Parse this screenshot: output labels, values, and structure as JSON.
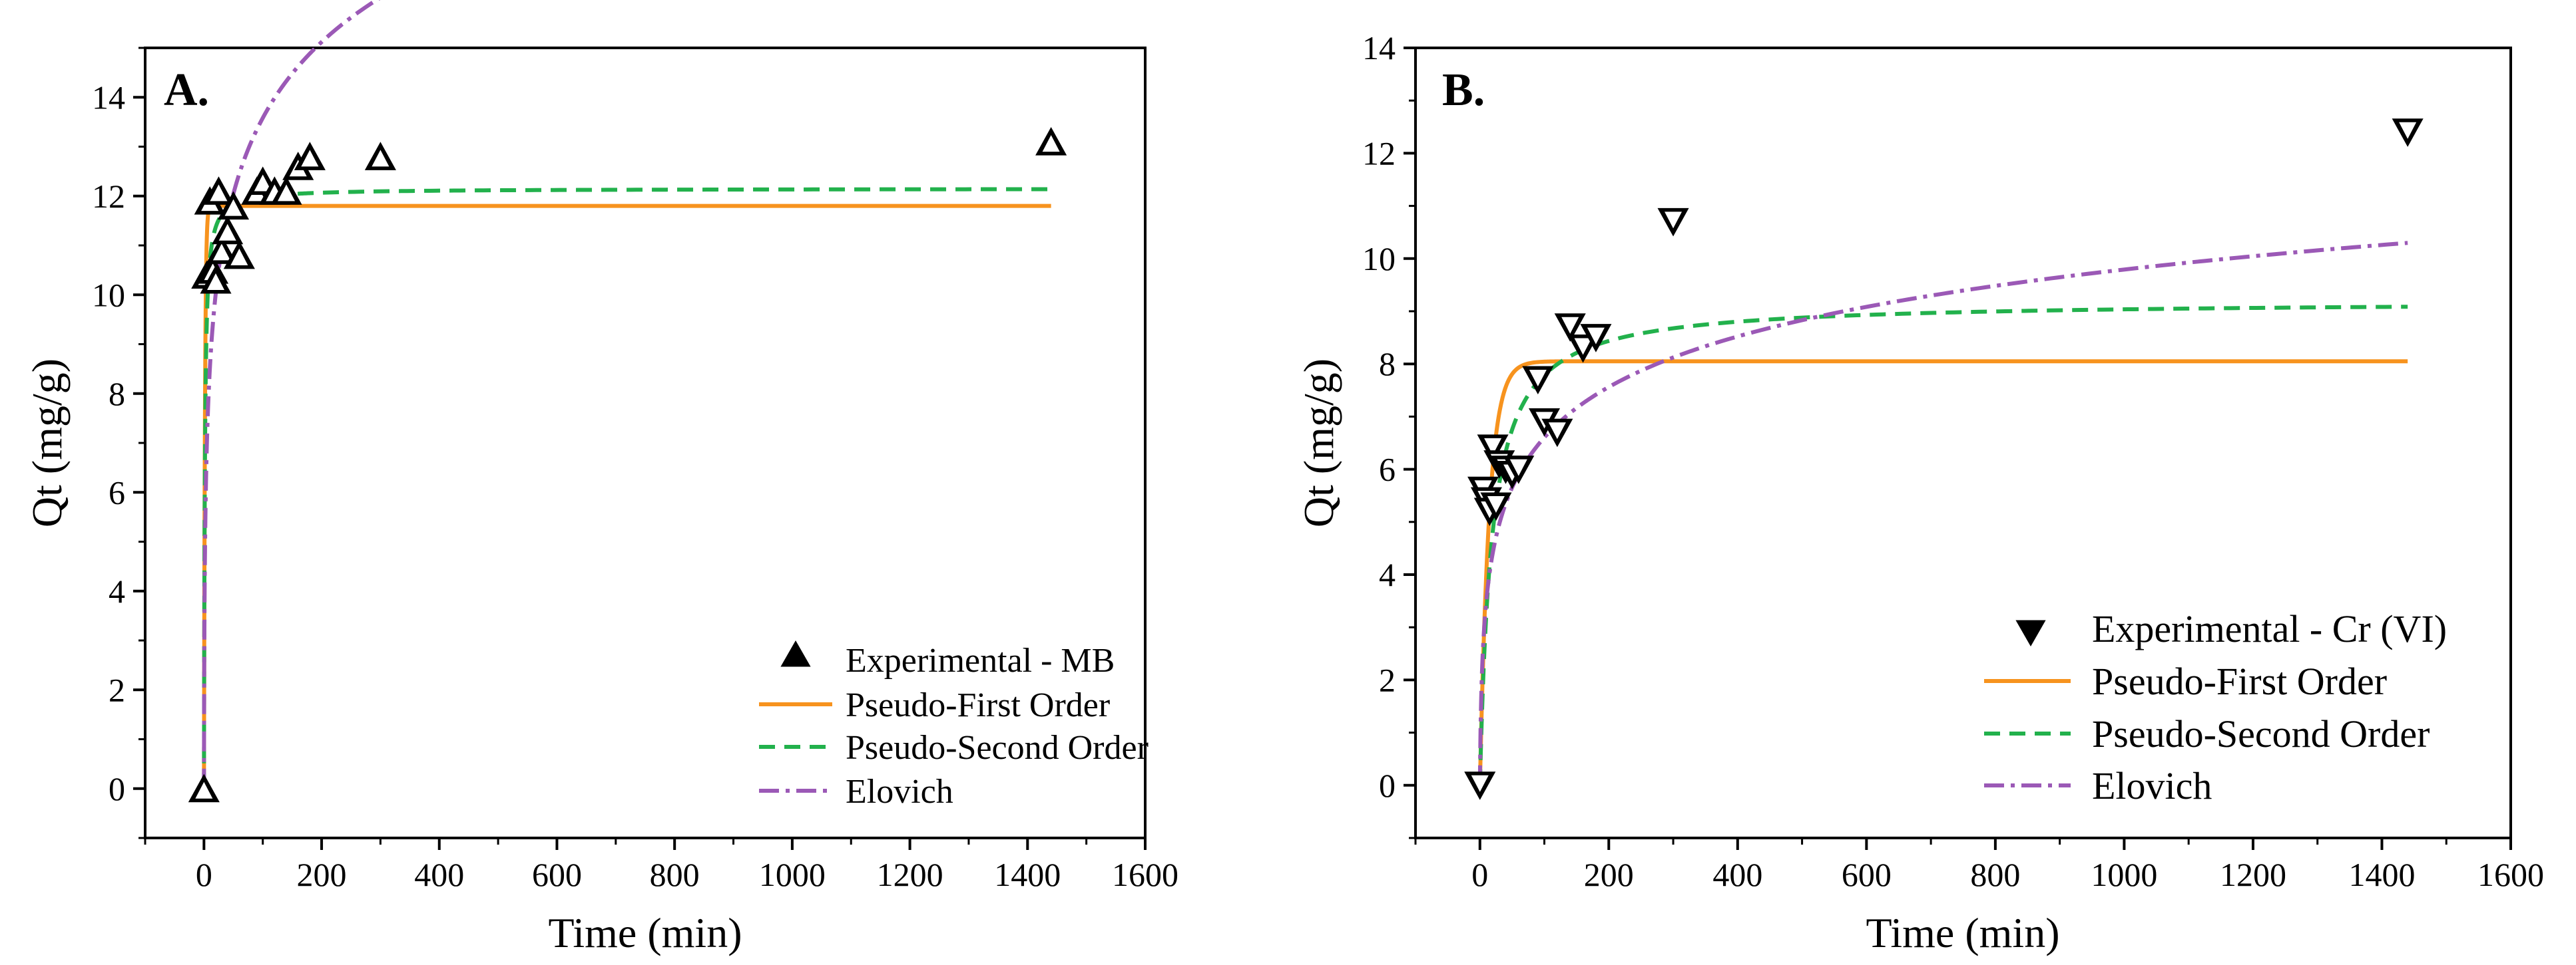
{
  "colors": {
    "axis": "#000000",
    "pfo": "#F7931E",
    "pso": "#22B14C",
    "elovich": "#9B59B6"
  },
  "chart_data": [
    {
      "type": "scatter",
      "panel_label": "A.",
      "xlabel": "Time (min)",
      "ylabel": "Qt (mg/g)",
      "xlim": [
        -100,
        1600
      ],
      "ylim": [
        -1,
        15
      ],
      "xticks": [
        0,
        200,
        400,
        600,
        800,
        1000,
        1200,
        1400,
        1600
      ],
      "yticks": [
        0,
        2,
        4,
        6,
        8,
        10,
        12,
        14
      ],
      "tick_labels_x": [
        "0",
        "200",
        "400",
        "600",
        "800",
        "1000",
        "1200",
        "1400",
        "1600"
      ],
      "tick_labels_y": [
        "0",
        "2",
        "4",
        "6",
        "8",
        "10",
        "12",
        "14"
      ],
      "legend_position": "bottom-right",
      "marker": "triangle-up",
      "legend": [
        "Experimental - MB",
        "Pseudo-First Order",
        "Pseudo-Second Order",
        "Elovich"
      ],
      "series": [
        {
          "name": "Experimental - MB",
          "style": "markers",
          "x": [
            0,
            5,
            10,
            15,
            20,
            25,
            30,
            40,
            50,
            60,
            90,
            100,
            120,
            140,
            160,
            180,
            300,
            1440
          ],
          "y": [
            0,
            10.4,
            11.9,
            10.5,
            10.3,
            12.1,
            10.9,
            11.3,
            11.8,
            10.8,
            12.1,
            12.3,
            12.1,
            12.1,
            12.6,
            12.8,
            12.8,
            13.1
          ]
        },
        {
          "name": "Pseudo-First Order",
          "style": "solid",
          "model": "pfo",
          "qe": 11.8,
          "k": 0.6
        },
        {
          "name": "Pseudo-Second Order",
          "style": "dashed",
          "model": "pso",
          "qe": 12.15,
          "k": 0.06
        },
        {
          "name": "Elovich",
          "style": "dashdot",
          "model": "elovich",
          "a": 10.0,
          "b": 0.45
        }
      ]
    },
    {
      "type": "scatter",
      "panel_label": "B.",
      "xlabel": "Time (min)",
      "ylabel": "Qt (mg/g)",
      "xlim": [
        -100,
        1600
      ],
      "ylim": [
        -1,
        14
      ],
      "xticks": [
        0,
        200,
        400,
        600,
        800,
        1000,
        1200,
        1400,
        1600
      ],
      "yticks": [
        0,
        2,
        4,
        6,
        8,
        10,
        12,
        14
      ],
      "tick_labels_x": [
        "0",
        "200",
        "400",
        "600",
        "800",
        "1000",
        "1200",
        "1400",
        "1600"
      ],
      "tick_labels_y": [
        "0",
        "2",
        "4",
        "6",
        "8",
        "10",
        "12",
        "14"
      ],
      "legend_position": "bottom-right",
      "marker": "triangle-down",
      "legend": [
        "Experimental - Cr (VI)",
        "Pseudo-First Order",
        "Pseudo-Second Order",
        "Elovich"
      ],
      "series": [
        {
          "name": "Experimental - Cr (VI)",
          "style": "markers",
          "x": [
            0,
            5,
            10,
            15,
            20,
            25,
            30,
            40,
            50,
            60,
            90,
            100,
            120,
            140,
            160,
            180,
            300,
            1440
          ],
          "y": [
            0,
            5.6,
            5.4,
            5.2,
            6.4,
            5.3,
            6.1,
            6.0,
            5.9,
            6.0,
            7.7,
            6.9,
            6.7,
            8.7,
            8.3,
            8.5,
            10.7,
            12.4
          ]
        },
        {
          "name": "Pseudo-First Order",
          "style": "solid",
          "model": "pfo",
          "qe": 8.05,
          "k": 0.07
        },
        {
          "name": "Pseudo-Second Order",
          "style": "dashed",
          "model": "pso",
          "qe": 9.2,
          "k": 0.006
        },
        {
          "name": "Elovich",
          "style": "dashdot",
          "model": "elovich",
          "a": 1.6,
          "b": 0.72
        }
      ]
    }
  ]
}
